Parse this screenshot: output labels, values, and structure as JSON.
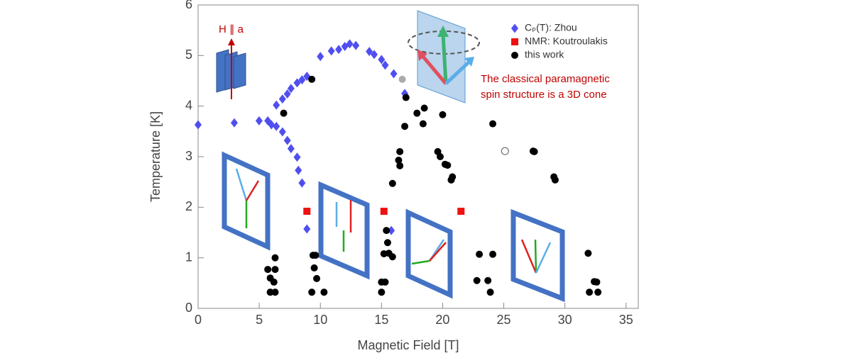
{
  "chart_data": {
    "type": "scatter",
    "xlabel": "Magnetic Field [T]",
    "ylabel": "Temperature [K]",
    "xlim": [
      0,
      36
    ],
    "ylim": [
      0,
      6
    ],
    "xticks": [
      0,
      5,
      10,
      15,
      20,
      25,
      30,
      35
    ],
    "yticks": [
      0,
      1,
      2,
      3,
      4,
      5,
      6
    ],
    "legend": "upper right",
    "annotations": [
      "H ∥ a",
      "The classical paramagnetic",
      "spin structure is a 3D cone"
    ],
    "series": [
      {
        "name": "Cₚ(T): Zhou",
        "color": "#4f4ff0",
        "marker": "diamond",
        "x": [
          0,
          2.96,
          4.99,
          5.7,
          6.0,
          6.4,
          6.4,
          6.9,
          6.9,
          7.3,
          7.3,
          7.6,
          7.6,
          8.1,
          8.1,
          8.5,
          8.2,
          8.9,
          8.5,
          8.9,
          10.0,
          10.9,
          11.5,
          12.0,
          12.4,
          12.9,
          14.0,
          14.4,
          15.0,
          15.3,
          16.0,
          16.9,
          15.8
        ],
        "values": [
          3.63,
          3.67,
          3.71,
          3.71,
          3.63,
          4.02,
          3.6,
          3.49,
          4.14,
          4.24,
          3.32,
          4.35,
          3.16,
          4.46,
          2.99,
          4.52,
          2.73,
          4.59,
          2.48,
          1.57,
          4.98,
          5.09,
          5.12,
          5.18,
          5.23,
          5.2,
          5.08,
          5.02,
          4.92,
          4.81,
          4.64,
          4.25,
          1.54
        ]
      },
      {
        "name": "NMR: Koutroulakis",
        "color": "#ee1111",
        "marker": "square",
        "x": [
          8.9,
          15.2,
          21.5
        ],
        "values": [
          1.92,
          1.92,
          1.92
        ]
      },
      {
        "name": "this work",
        "color": "#000000",
        "marker": "circle",
        "x": [
          9.3,
          7.0,
          17.0,
          17.9,
          18.5,
          16.9,
          18.4,
          20.0,
          24.1,
          16.5,
          16.4,
          16.5,
          19.6,
          19.8,
          20.2,
          20.4,
          20.8,
          20.7,
          27.4,
          27.5,
          29.1,
          29.2,
          15.9,
          15.4,
          15.5,
          15.2,
          15.6,
          15.9,
          15.0,
          15.3,
          15.0,
          6.3,
          5.7,
          6.3,
          5.9,
          6.2,
          5.9,
          6.3,
          9.4,
          9.6,
          9.5,
          9.7,
          10.3,
          9.3,
          23.0,
          24.1,
          22.8,
          23.7,
          23.9,
          31.9,
          32.4,
          32.0,
          32.7,
          32.6
        ],
        "values": [
          4.53,
          3.86,
          4.17,
          3.86,
          3.96,
          3.6,
          3.65,
          3.83,
          3.65,
          3.1,
          2.93,
          2.82,
          3.1,
          3.0,
          2.85,
          2.83,
          2.6,
          2.54,
          3.11,
          3.1,
          2.6,
          2.54,
          2.47,
          1.54,
          1.3,
          1.08,
          1.09,
          1.02,
          0.52,
          0.52,
          0.32,
          1.0,
          0.77,
          0.77,
          0.6,
          0.52,
          0.32,
          0.32,
          1.05,
          1.05,
          0.8,
          0.59,
          0.32,
          0.32,
          1.07,
          1.07,
          0.55,
          0.55,
          0.32,
          1.09,
          0.53,
          0.32,
          0.32,
          0.52
        ]
      },
      {
        "color": "#aaaaaa",
        "marker": "circle",
        "x": [
          16.7
        ],
        "values": [
          4.53
        ]
      },
      {
        "color": "#555555",
        "marker": "circle",
        "hollow": true,
        "x": [
          25.1
        ],
        "values": [
          3.11
        ]
      }
    ]
  }
}
